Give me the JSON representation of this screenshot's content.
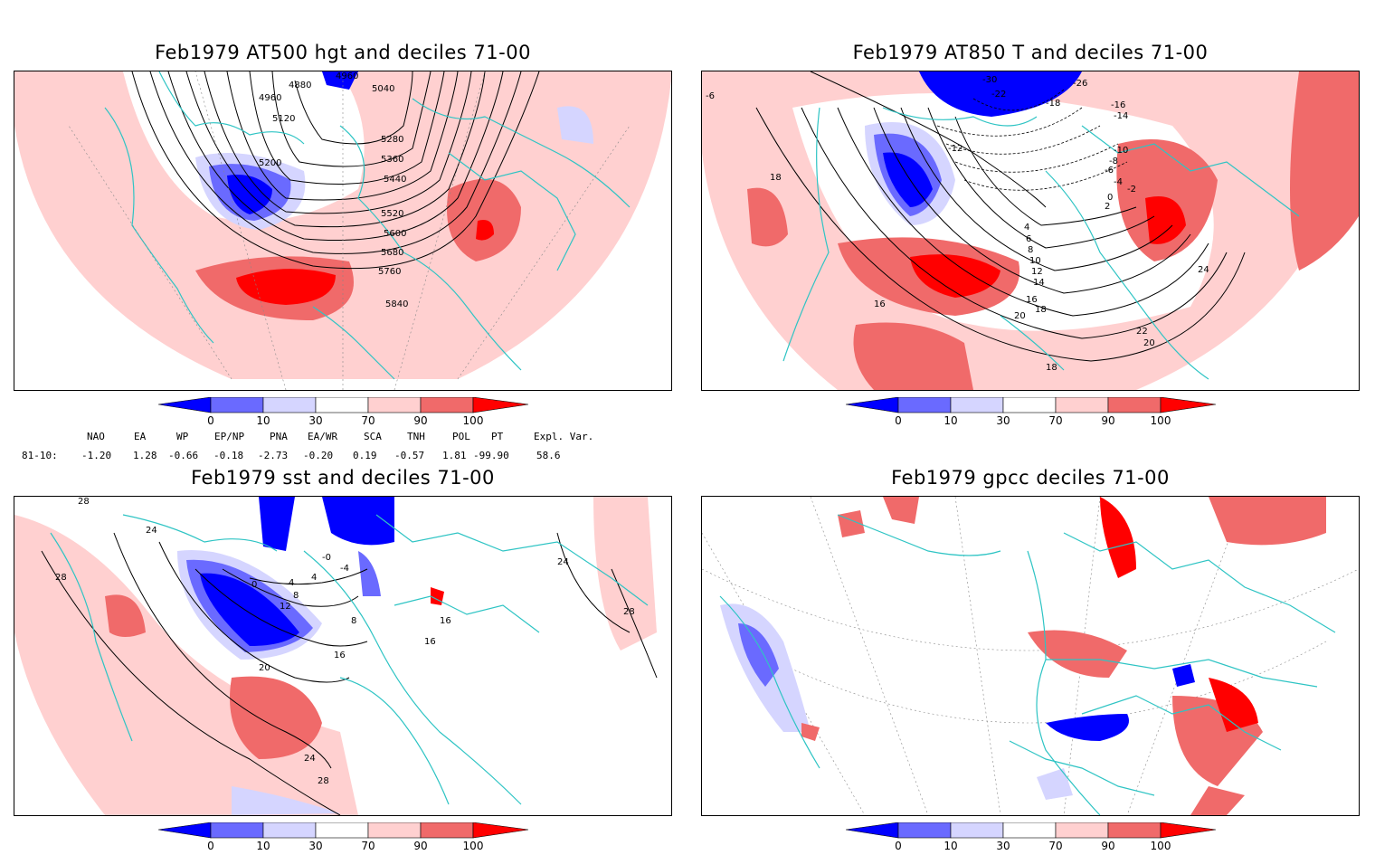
{
  "panels": [
    {
      "title": "Feb1979 AT500 hgt and deciles 71-00",
      "contour_labels": [
        "4880",
        "4960",
        "4960",
        "5040",
        "5120",
        "5200",
        "5280",
        "5360",
        "5440",
        "5520",
        "5600",
        "5680",
        "5760",
        "5840"
      ]
    },
    {
      "title": "Feb1979 AT850 T and deciles 71-00",
      "contour_labels": [
        "-30",
        "-26",
        "-22",
        "-18",
        "-16",
        "-14",
        "-12",
        "-10",
        "-8",
        "-6",
        "-4",
        "-2",
        "0",
        "2",
        "4",
        "6",
        "8",
        "10",
        "12",
        "14",
        "16",
        "18",
        "20",
        "22",
        "24",
        "20",
        "18",
        "16",
        "18",
        "-6"
      ]
    },
    {
      "title": "Feb1979 sst and deciles 71-00",
      "contour_labels": [
        "28",
        "28",
        "24",
        "20",
        "16",
        "12",
        "8",
        "4",
        "0",
        "-0",
        "-4",
        "4",
        "8",
        "16",
        "16",
        "24",
        "28",
        "24",
        "28"
      ]
    },
    {
      "title": "Feb1979 gpcc deciles 71-00",
      "contour_labels": []
    }
  ],
  "colorbar": {
    "tick_labels": [
      "0",
      "10",
      "30",
      "70",
      "90",
      "100"
    ],
    "colors": [
      "#0000ff",
      "#6a6aff",
      "#d5d5ff",
      "#ffffff",
      "#ffd0d0",
      "#f06a6a",
      "#ff0000"
    ]
  },
  "indices": {
    "row_label": "81-10:",
    "names": [
      "NAO",
      "EA",
      "WP",
      "EP/NP",
      "PNA",
      "EA/WR",
      "SCA",
      "TNH",
      "POL",
      "PT",
      "Expl. Var."
    ],
    "values": [
      "-1.20",
      "1.28",
      "-0.66",
      "-0.18",
      "-2.73",
      "-0.20",
      "0.19",
      "-0.57",
      "1.81",
      "-99.90",
      "58.6"
    ]
  },
  "colors": {
    "coastline": "#2ec4c4",
    "grid": "#888888",
    "contour": "#000000"
  }
}
